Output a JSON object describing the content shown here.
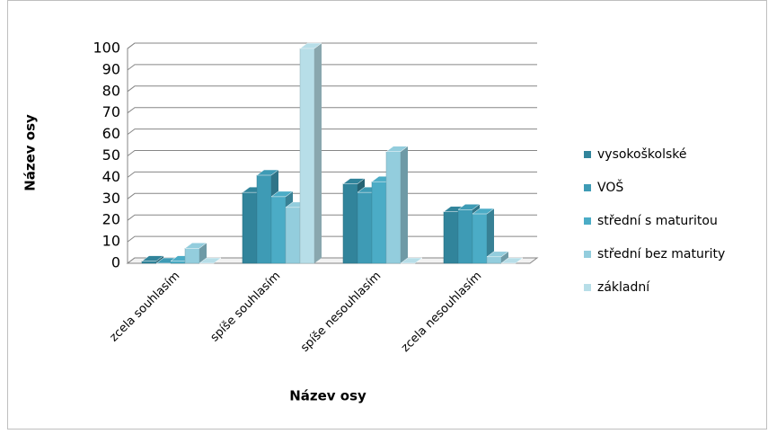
{
  "chart_data": {
    "type": "bar3d",
    "xlabel": "Název osy",
    "ylabel": "Název osy",
    "categories": [
      "zcela souhlasím",
      "spíše souhlasím",
      "spíše nesouhlasím",
      "zcela nesouhlasím"
    ],
    "series": [
      {
        "name": "vysokoškolské",
        "color": "#31849b",
        "values": [
          1,
          33,
          37,
          24
        ]
      },
      {
        "name": "VOŠ",
        "color": "#3e9bb5",
        "values": [
          0,
          41,
          33,
          25
        ]
      },
      {
        "name": "střední s maturitou",
        "color": "#4bacc6",
        "values": [
          1,
          31,
          38,
          23
        ]
      },
      {
        "name": "střední bez maturity",
        "color": "#93cddd",
        "values": [
          7,
          26,
          52,
          3
        ]
      },
      {
        "name": "základní",
        "color": "#b7dee8",
        "values": [
          0,
          100,
          0,
          0
        ]
      }
    ],
    "ylim": [
      0,
      100
    ],
    "yticks": [
      0,
      10,
      20,
      30,
      40,
      50,
      60,
      70,
      80,
      90,
      100
    ],
    "grid": true,
    "legend": "right"
  }
}
